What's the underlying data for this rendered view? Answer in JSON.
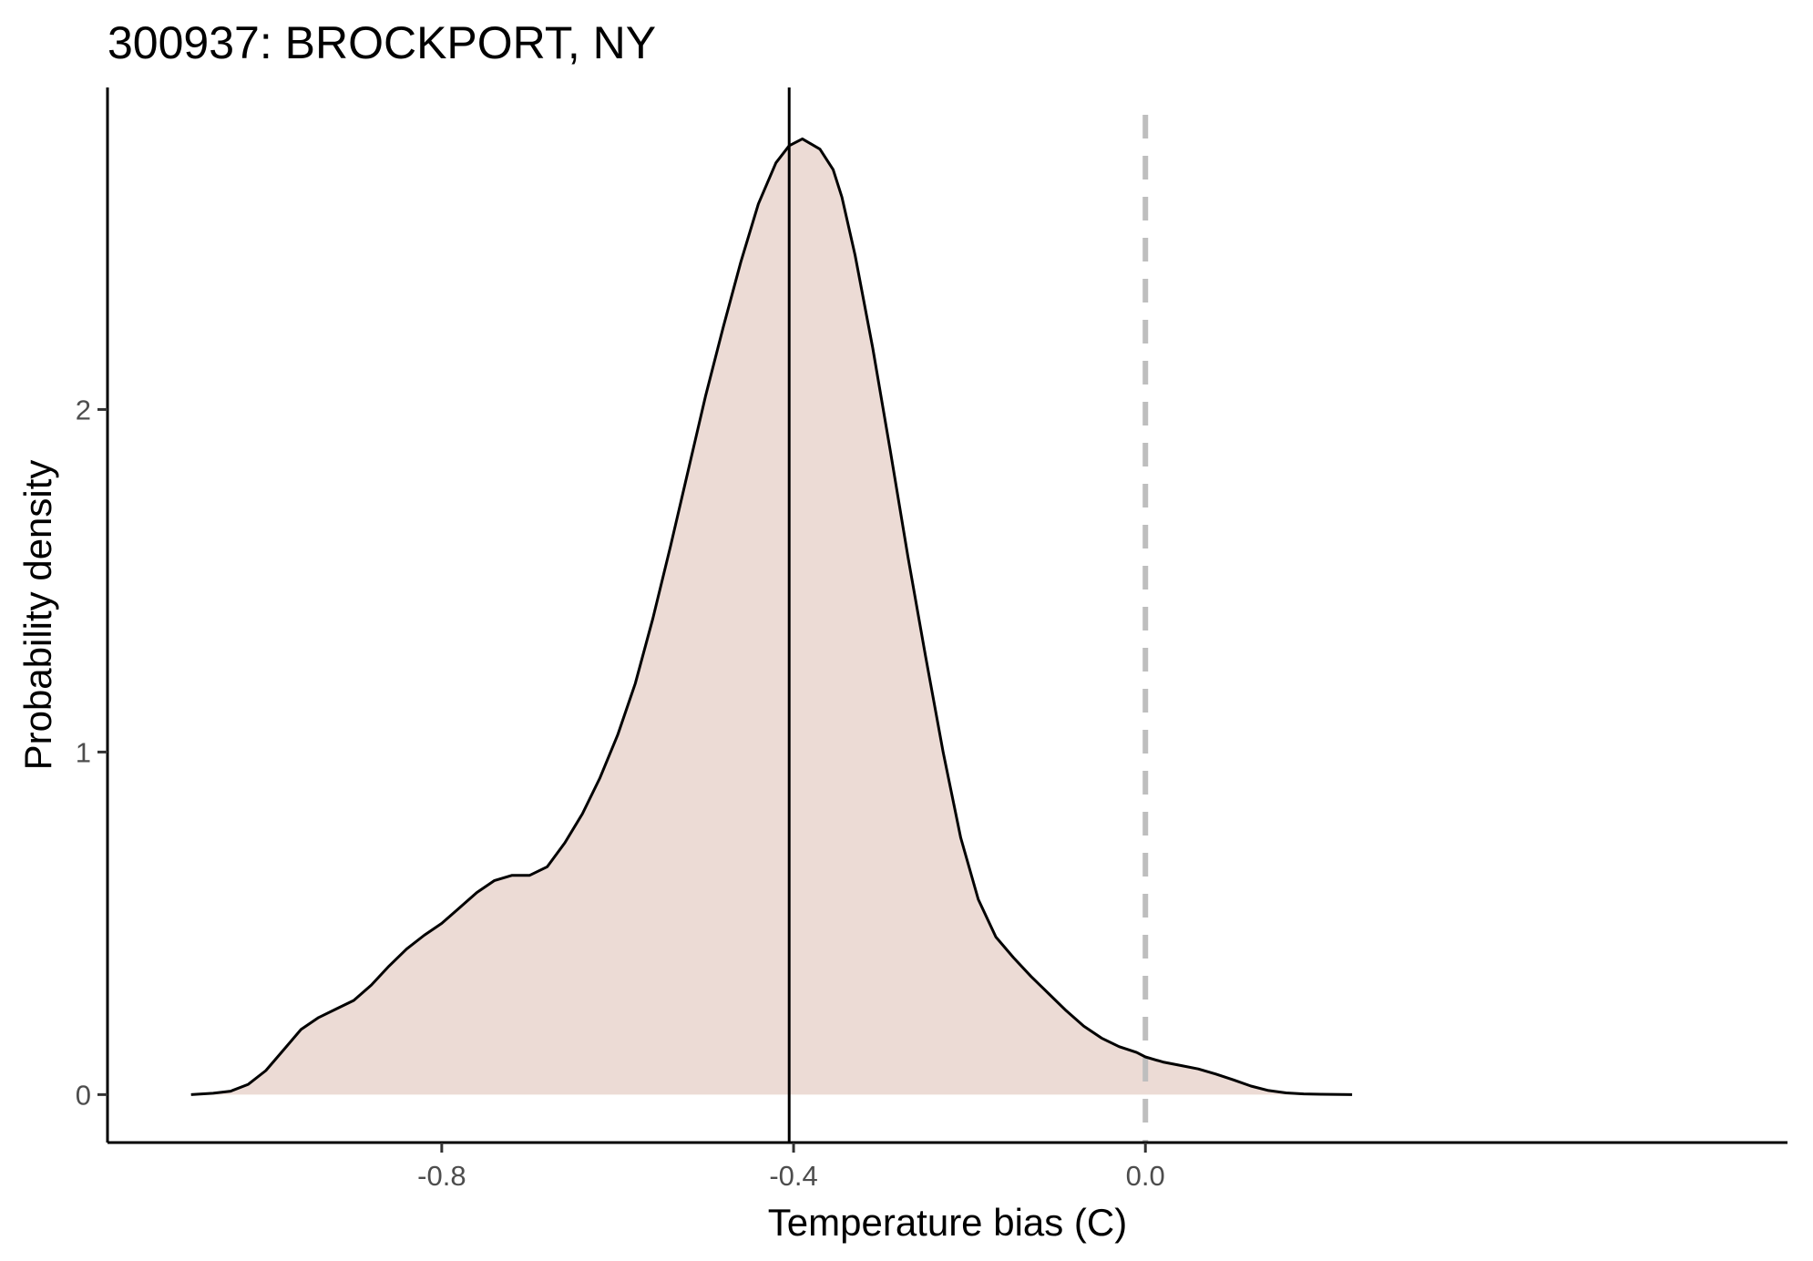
{
  "chart_data": {
    "type": "area",
    "title": "300937: BROCKPORT, NY",
    "xlabel": "Temperature bias (C)",
    "ylabel": "Probability density",
    "xlim": [
      -1.18,
      0.73
    ],
    "ylim": [
      -0.14,
      2.94
    ],
    "x_ticks": [
      {
        "value": -0.8,
        "label": "-0.8"
      },
      {
        "value": -0.4,
        "label": "-0.4"
      },
      {
        "value": 0.0,
        "label": "0.0"
      }
    ],
    "y_ticks": [
      {
        "value": 0,
        "label": "0"
      },
      {
        "value": 1,
        "label": "1"
      },
      {
        "value": 2,
        "label": "2"
      }
    ],
    "grid": false,
    "legend": "none",
    "fill_color": "#ecdbd5",
    "line_color": "#000000",
    "mean_line": {
      "x": -0.405,
      "color": "#000000",
      "style": "solid"
    },
    "reference_line": {
      "x": 0.0,
      "color": "#bebebe",
      "style": "dashed"
    },
    "x": [
      -1.085,
      -1.06,
      -1.04,
      -1.02,
      -1.0,
      -0.98,
      -0.96,
      -0.94,
      -0.92,
      -0.9,
      -0.88,
      -0.86,
      -0.84,
      -0.82,
      -0.8,
      -0.78,
      -0.76,
      -0.74,
      -0.72,
      -0.7,
      -0.68,
      -0.66,
      -0.64,
      -0.62,
      -0.6,
      -0.58,
      -0.56,
      -0.54,
      -0.52,
      -0.5,
      -0.48,
      -0.46,
      -0.44,
      -0.42,
      -0.405,
      -0.39,
      -0.37,
      -0.355,
      -0.345,
      -0.33,
      -0.31,
      -0.29,
      -0.27,
      -0.25,
      -0.23,
      -0.21,
      -0.19,
      -0.17,
      -0.15,
      -0.13,
      -0.11,
      -0.09,
      -0.07,
      -0.05,
      -0.03,
      -0.01,
      0.0,
      0.02,
      0.04,
      0.06,
      0.08,
      0.1,
      0.12,
      0.14,
      0.16,
      0.18,
      0.2,
      0.235
    ],
    "y": [
      0.0,
      0.004,
      0.01,
      0.03,
      0.07,
      0.13,
      0.19,
      0.225,
      0.25,
      0.275,
      0.32,
      0.375,
      0.425,
      0.465,
      0.5,
      0.545,
      0.59,
      0.625,
      0.64,
      0.64,
      0.665,
      0.735,
      0.82,
      0.925,
      1.05,
      1.2,
      1.39,
      1.6,
      1.82,
      2.04,
      2.24,
      2.43,
      2.6,
      2.72,
      2.77,
      2.79,
      2.76,
      2.7,
      2.62,
      2.45,
      2.18,
      1.88,
      1.57,
      1.28,
      1.0,
      0.75,
      0.57,
      0.46,
      0.4,
      0.345,
      0.295,
      0.245,
      0.2,
      0.165,
      0.14,
      0.123,
      0.11,
      0.095,
      0.085,
      0.075,
      0.06,
      0.043,
      0.025,
      0.012,
      0.005,
      0.002,
      0.001,
      0.0
    ]
  }
}
